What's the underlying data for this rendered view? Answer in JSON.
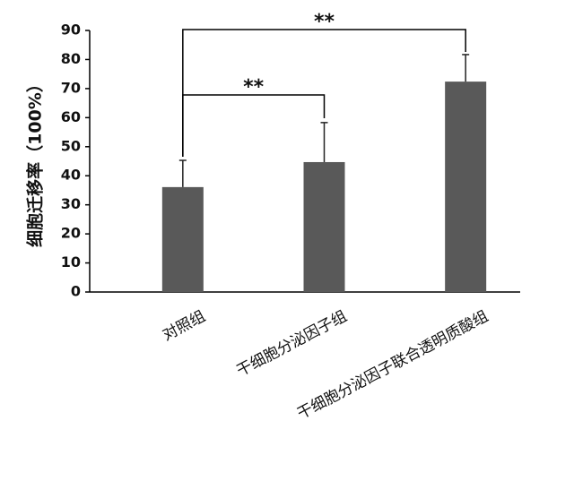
{
  "chart_data": {
    "type": "bar",
    "y_label": "细胞迁移率（100%）",
    "categories": [
      "对照组",
      "干细胞分泌因子组",
      "干细胞分泌因子联合透明质酸组"
    ],
    "values": [
      36.1,
      44.7,
      72.4
    ],
    "errors": [
      9.2,
      13.6,
      9.3
    ],
    "color": "#595959",
    "ylim": [
      0,
      90
    ],
    "yticks": [
      0,
      10,
      20,
      30,
      40,
      50,
      60,
      70,
      80,
      90
    ],
    "grid": false,
    "annotations": [
      {
        "text": "**"
      },
      {
        "text": "**"
      }
    ]
  }
}
